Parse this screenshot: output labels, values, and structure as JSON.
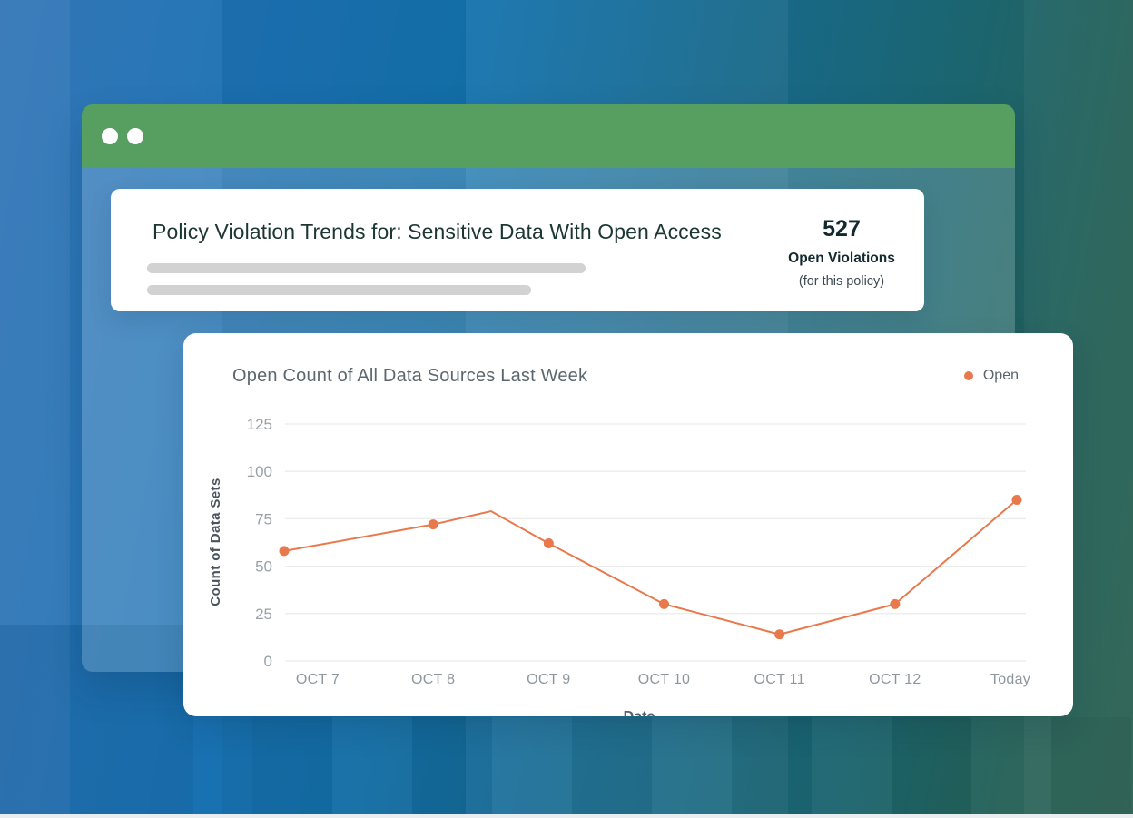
{
  "background": {
    "top_left_color": "#2A70B5",
    "top_right_color": "#1B6570",
    "bottom_left_color": "#1371B2",
    "bottom_right_color": "#2A6152"
  },
  "window": {
    "titlebar_color": "#579F60",
    "controls": [
      "window-dot",
      "window-dot"
    ]
  },
  "header_card": {
    "title": "Policy Violation Trends for: Sensitive Data With Open Access",
    "stat": {
      "value": "527",
      "label": "Open Violations",
      "sublabel": "(for this policy)"
    },
    "skeleton_lines": 2
  },
  "chart_card": {
    "chart_data": {
      "type": "line",
      "title": "Open Count of All Data Sources Last Week",
      "xlabel": "Date",
      "ylabel": "Count of Data Sets",
      "categories": [
        "OCT 7",
        "OCT 8",
        "OCT 9",
        "OCT 10",
        "OCT 11",
        "OCT 12",
        "Today"
      ],
      "series": [
        {
          "name": "Open",
          "color": "#E8794C",
          "values": [
            58,
            72,
            62,
            30,
            14,
            30,
            85
          ]
        }
      ],
      "unmarked_vertex": {
        "after_index": 1,
        "value": 79,
        "note": "line bends between OCT 8 and OCT 9 without a dot"
      },
      "yticks": [
        0,
        25,
        50,
        75,
        100,
        125
      ],
      "ylim": [
        0,
        125
      ],
      "grid": "horizontal",
      "gridline_color": "#ECECEC",
      "tick_label_color": "#8F979E",
      "axis_title_color": "#4A545E",
      "legend_position": "top-right"
    }
  }
}
